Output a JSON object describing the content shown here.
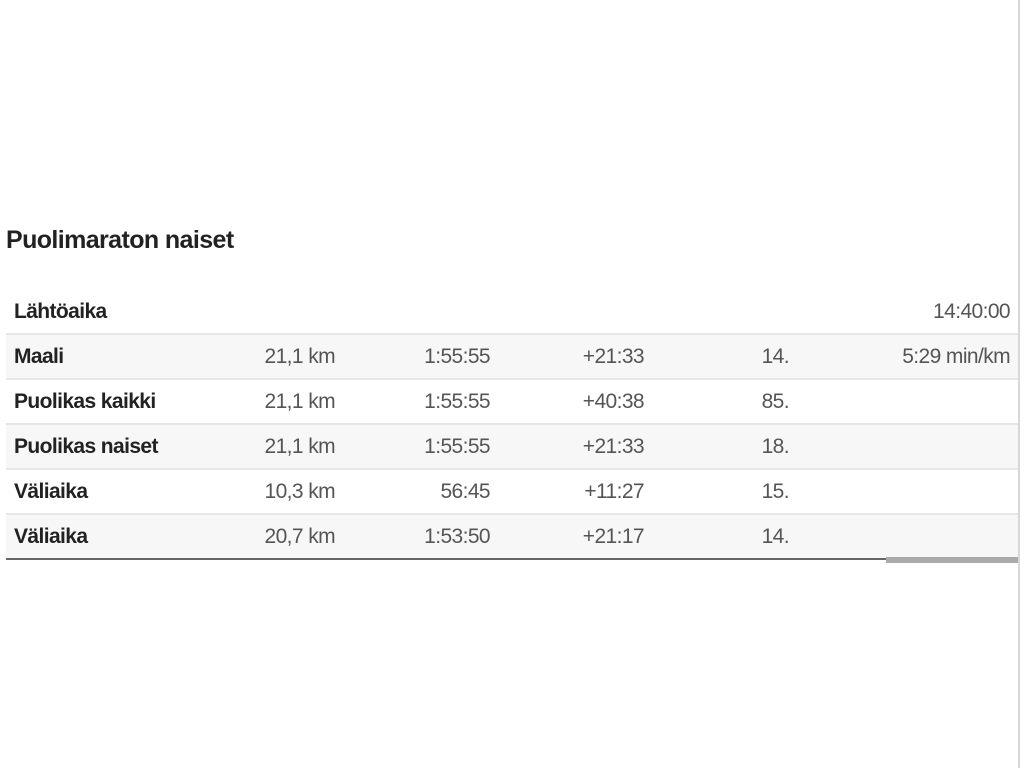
{
  "title": "Puolimaraton naiset",
  "start": {
    "label": "Lähtöaika",
    "time": "14:40:00"
  },
  "rows": [
    {
      "label": "Maali",
      "distance": "21,1 km",
      "time": "1:55:55",
      "diff": "+21:33",
      "rank": "14.",
      "pace": "5:29 min/km"
    },
    {
      "label": "Puolikas kaikki",
      "distance": "21,1 km",
      "time": "1:55:55",
      "diff": "+40:38",
      "rank": "85.",
      "pace": ""
    },
    {
      "label": "Puolikas naiset",
      "distance": "21,1 km",
      "time": "1:55:55",
      "diff": "+21:33",
      "rank": "18.",
      "pace": ""
    },
    {
      "label": "Väliaika",
      "distance": "10,3 km",
      "time": "56:45",
      "diff": "+11:27",
      "rank": "15.",
      "pace": ""
    },
    {
      "label": "Väliaika",
      "distance": "20,7 km",
      "time": "1:53:50",
      "diff": "+21:17",
      "rank": "14.",
      "pace": ""
    }
  ]
}
